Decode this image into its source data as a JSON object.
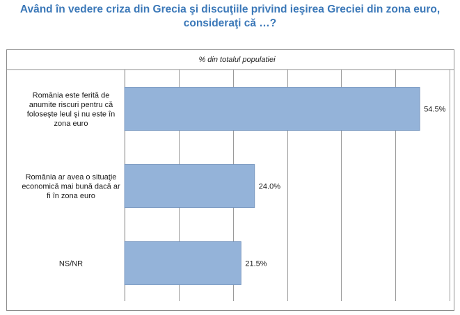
{
  "title": {
    "line1": "Având în vedere criza din Grecia şi discuţiile privind ieşirea Greciei din zona euro,",
    "line2": "consideraţi că …?"
  },
  "chart_data": {
    "type": "bar",
    "orientation": "horizontal",
    "subtitle": "% din totalul populatiei",
    "categories": [
      "România este ferită de anumite riscuri pentru că foloseşte leul şi nu este în zona euro",
      "România ar avea o situaţie economică mai bună dacă ar fi în zona euro",
      "NS/NR"
    ],
    "category_lines": [
      [
        "România este ferită de",
        "anumite riscuri pentru că",
        "foloseşte leul şi nu este în",
        "zona euro"
      ],
      [
        "România ar avea o situaţie",
        "economică mai bună dacă ar",
        "fi în zona euro"
      ],
      [
        "NS/NR"
      ]
    ],
    "values": [
      54.5,
      24.0,
      21.5
    ],
    "value_labels": [
      "54.5%",
      "24.0%",
      "21.5%"
    ],
    "xlim": [
      0,
      60
    ],
    "grid": true,
    "bar_color": "#94b3d9",
    "bar_border_color": "#6f8fba"
  }
}
